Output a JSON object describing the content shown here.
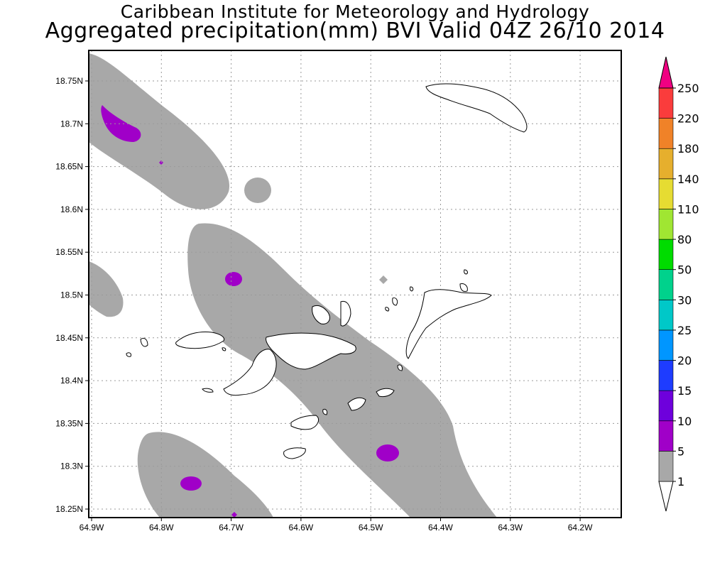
{
  "header": {
    "title_line1": "Caribbean Institute for Meteorology and Hydrology",
    "title_line2": "Aggregated precipitation(mm) BVI Valid 04Z 26/10 2014"
  },
  "map": {
    "lon_labels": [
      "64.9W",
      "64.8W",
      "64.7W",
      "64.6W",
      "64.5W",
      "64.4W",
      "64.3W",
      "64.2W"
    ],
    "lat_labels": [
      "18.75N",
      "18.7N",
      "18.65N",
      "18.6N",
      "18.55N",
      "18.5N",
      "18.45N",
      "18.4N",
      "18.35N",
      "18.3N",
      "18.25N"
    ],
    "grid": "dotted",
    "land_outline_color": "#000000"
  },
  "colorbar": {
    "levels": [
      "1",
      "5",
      "10",
      "15",
      "20",
      "25",
      "30",
      "50",
      "80",
      "110",
      "140",
      "180",
      "220",
      "250"
    ],
    "colors": [
      "#ffffff",
      "#a8a8a8",
      "#a000c8",
      "#6e00dc",
      "#1e3cff",
      "#0096ff",
      "#00c8c8",
      "#00d28c",
      "#00dc00",
      "#a0e632",
      "#e6dc32",
      "#e6af2d",
      "#f08228",
      "#fa3c3c",
      "#f00082"
    ]
  }
}
